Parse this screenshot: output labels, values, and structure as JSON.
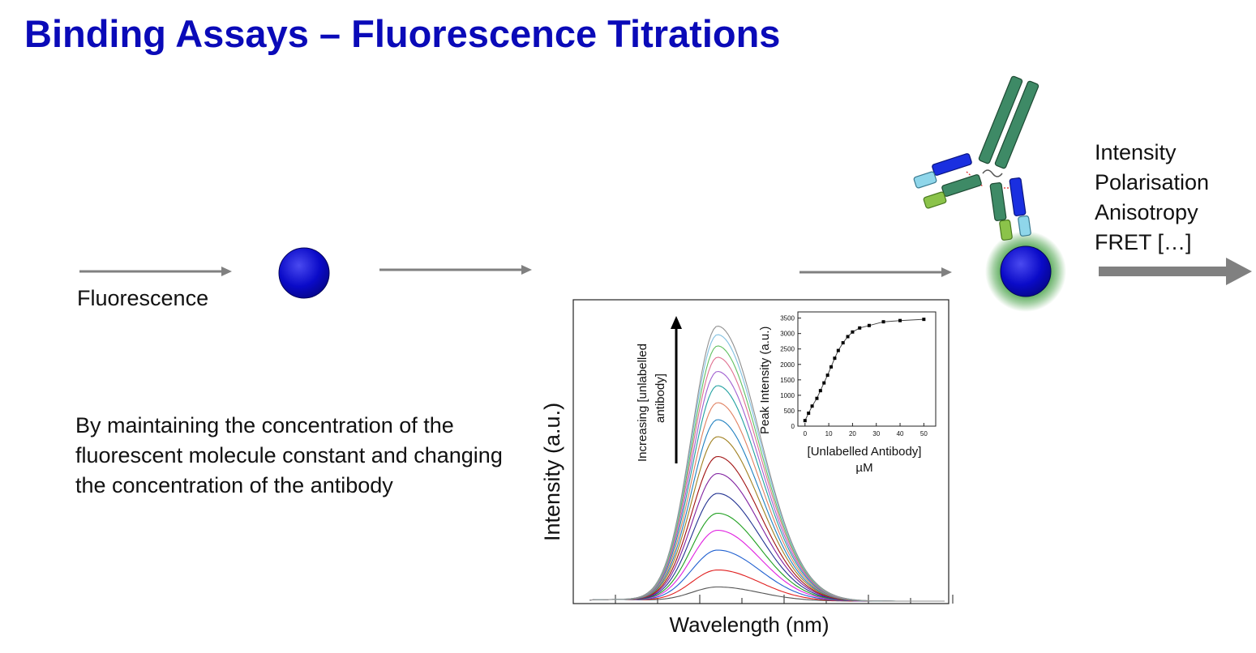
{
  "slide": {
    "title": "Binding Assays – Fluorescence Titrations",
    "fluorescence_label": "Fluorescence",
    "description": "By maintaining the concentration of the fluorescent molecule constant and changing the concentration of the antibody",
    "measurements": [
      "Intensity",
      "Polarisation",
      "Anisotropy",
      "FRET […]"
    ]
  },
  "colors": {
    "title": "#0a0ab8",
    "molecule": "#0a0ac8",
    "arrow": "#808080",
    "glow": "#3a9a3a"
  },
  "chart_data": [
    {
      "type": "line",
      "name": "emission-spectra",
      "xlabel": "Wavelength (nm)",
      "ylabel": "Intensity (a.u.)",
      "annotation": "Increasing [unlabelled antibody]",
      "series_colors": [
        "#555555",
        "#e02020",
        "#2060d0",
        "#e020e0",
        "#20a020",
        "#203090",
        "#8020a0",
        "#a01010",
        "#a08020",
        "#2080c0",
        "#e08060",
        "#20a0a0",
        "#a060d0",
        "#e07090",
        "#60c060",
        "#80c0e0",
        "#909090"
      ],
      "peak_levels": [
        0.05,
        0.11,
        0.18,
        0.25,
        0.31,
        0.38,
        0.45,
        0.51,
        0.58,
        0.64,
        0.7,
        0.76,
        0.81,
        0.86,
        0.9,
        0.94,
        0.97
      ]
    },
    {
      "type": "scatter",
      "name": "inset-binding-curve",
      "xlabel": "[Unlabelled Antibody]",
      "xlabel2": "µM",
      "ylabel": "Peak Intensity (a.u.)",
      "xlim": [
        -3,
        55
      ],
      "ylim": [
        0,
        3700
      ],
      "xticks": [
        0,
        10,
        20,
        30,
        40,
        50
      ],
      "yticks": [
        0,
        500,
        1000,
        1500,
        2000,
        2500,
        3000,
        3500
      ],
      "x": [
        0,
        1.5,
        3,
        5,
        6.5,
        8,
        9.5,
        11,
        12.5,
        14,
        16,
        18,
        20,
        23,
        27,
        33,
        40,
        50
      ],
      "y": [
        180,
        420,
        650,
        900,
        1150,
        1400,
        1650,
        1920,
        2200,
        2450,
        2700,
        2900,
        3050,
        3180,
        3260,
        3380,
        3420,
        3460
      ]
    }
  ]
}
